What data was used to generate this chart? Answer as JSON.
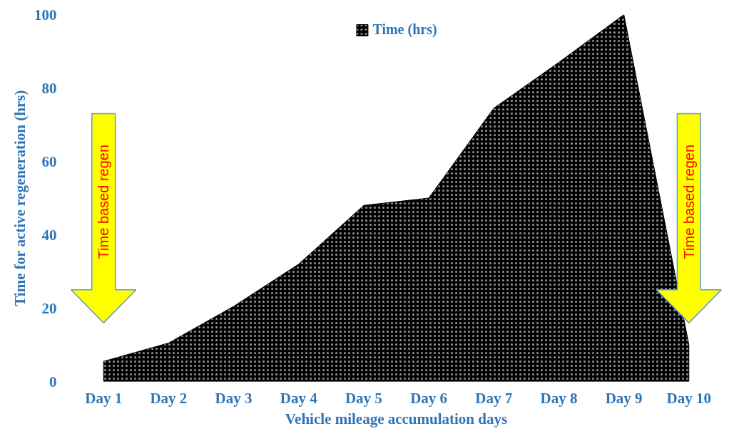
{
  "chart_data": {
    "type": "area",
    "xlabel": "Vehicle mileage accumulation days",
    "ylabel": "Time for active regeneration (hrs)",
    "categories": [
      "Day 1",
      "Day 2",
      "Day 3",
      "Day 4",
      "Day 5",
      "Day 6",
      "Day 7",
      "Day 8",
      "Day 9",
      "Day 10"
    ],
    "series": [
      {
        "name": "Time (hrs)",
        "color": "#000000",
        "values": [
          5.5,
          10.5,
          20.5,
          32,
          48,
          50,
          74.5,
          87,
          100,
          10
        ]
      }
    ],
    "ylim": [
      0,
      100
    ],
    "yticks": [
      0,
      20,
      40,
      60,
      80,
      100
    ],
    "grid": false,
    "legend": "top",
    "annotations": [
      "Time based regen",
      "Time based regen"
    ]
  }
}
